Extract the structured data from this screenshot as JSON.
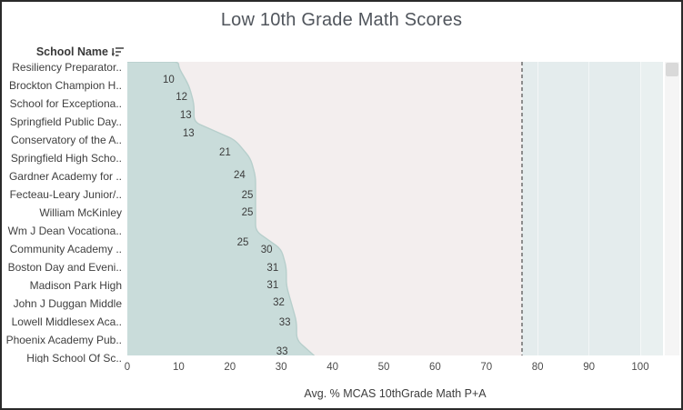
{
  "title": "Low 10th Grade Math Scores",
  "header": {
    "column_label": "School Name"
  },
  "chart_data": {
    "type": "area",
    "orientation": "horizontal, categories top-to-bottom",
    "title": "Low 10th Grade Math Scores",
    "xlabel": "Avg. % MCAS 10thGrade Math P+A",
    "ylabel": "School Name",
    "x_ticks": [
      0,
      10,
      20,
      30,
      40,
      50,
      60,
      70,
      80,
      90,
      100
    ],
    "xlim": [
      0,
      104.5
    ],
    "grid": "off",
    "reference_line": {
      "value": 77,
      "style": "dashed"
    },
    "reference_band": {
      "from": 77,
      "to": 104.5
    },
    "categories": [
      "Resiliency Preparator..",
      "Brockton Champion H..",
      "School for Exceptiona..",
      "Springfield Public Day..",
      "Conservatory of the A..",
      "Springfield High Scho..",
      "Gardner Academy for ..",
      "Fecteau-Leary Junior/..",
      "William McKinley",
      "Wm J Dean Vocationa..",
      "Community Academy ..",
      "Boston Day and Eveni..",
      "Madison Park High",
      "John J Duggan Middle",
      "Lowell Middlesex Aca..",
      "Phoenix Academy Pub..",
      "High School Of Sc.."
    ],
    "values": [
      10,
      12,
      13,
      13,
      21,
      24,
      25,
      25,
      25,
      25,
      30,
      31,
      31,
      32,
      33,
      33,
      37
    ],
    "visible_value_labels": [
      "10",
      "12",
      "13",
      "13",
      "21",
      "24",
      "25",
      "25",
      "25",
      "30",
      "31",
      "31",
      "32",
      "33",
      "33"
    ]
  },
  "colors": {
    "area_fill": "#c9dcda",
    "area_stroke": "#b7cfcc",
    "plot_background": "#f3eeee",
    "reference_band": "#e4eced",
    "reference_band_right": "#e9f0f0",
    "reference_line": "#8d8d8d",
    "title_text": "#50555c",
    "label_text": "#3f3f3f",
    "scroll_track": "#f5f5f5",
    "scroll_thumb": "#d9d9d9"
  }
}
